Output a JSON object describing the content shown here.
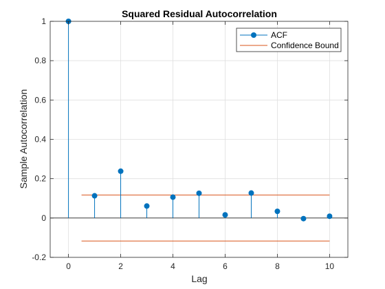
{
  "chart_data": {
    "type": "stem",
    "title": "Squared Residual Autocorrelation",
    "xlabel": "Lag",
    "ylabel": "Sample Autocorrelation",
    "xlim": [
      -0.7,
      10.7
    ],
    "ylim": [
      -0.2,
      1
    ],
    "xticks": [
      0,
      2,
      4,
      6,
      8,
      10
    ],
    "yticks": [
      -0.2,
      0,
      0.2,
      0.4,
      0.6,
      0.8,
      1
    ],
    "ytick_labels": [
      "-0.2",
      "0",
      "0.2",
      "0.4",
      "0.6",
      "0.8",
      "1"
    ],
    "grid": true,
    "legend_location": "top-right",
    "series": [
      {
        "name": "ACF",
        "color": "#0072BD",
        "x": [
          0,
          1,
          2,
          3,
          4,
          5,
          6,
          7,
          8,
          9,
          10
        ],
        "y": [
          1.0,
          0.113,
          0.238,
          0.061,
          0.106,
          0.126,
          0.016,
          0.127,
          0.034,
          -0.003,
          0.009
        ]
      },
      {
        "name": "Confidence Bound",
        "color": "#D95319",
        "x_range": [
          0.5,
          10
        ],
        "upper": 0.117,
        "lower": -0.117
      }
    ]
  }
}
